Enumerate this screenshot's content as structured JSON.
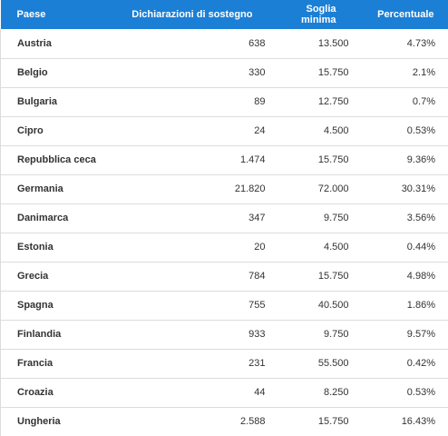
{
  "table": {
    "header": [
      "Paese",
      "Dichiarazioni di sostegno",
      "Soglia minima",
      "Percentuale"
    ],
    "rows": [
      [
        "Austria",
        "638",
        "13.500",
        "4.73%"
      ],
      [
        "Belgio",
        "330",
        "15.750",
        "2.1%"
      ],
      [
        "Bulgaria",
        "89",
        "12.750",
        "0.7%"
      ],
      [
        "Cipro",
        "24",
        "4.500",
        "0.53%"
      ],
      [
        "Repubblica ceca",
        "1.474",
        "15.750",
        "9.36%"
      ],
      [
        "Germania",
        "21.820",
        "72.000",
        "30.31%"
      ],
      [
        "Danimarca",
        "347",
        "9.750",
        "3.56%"
      ],
      [
        "Estonia",
        "20",
        "4.500",
        "0.44%"
      ],
      [
        "Grecia",
        "784",
        "15.750",
        "4.98%"
      ],
      [
        "Spagna",
        "755",
        "40.500",
        "1.86%"
      ],
      [
        "Finlandia",
        "933",
        "9.750",
        "9.57%"
      ],
      [
        "Francia",
        "231",
        "55.500",
        "0.42%"
      ],
      [
        "Croazia",
        "44",
        "8.250",
        "0.53%"
      ],
      [
        "Ungheria",
        "2.588",
        "15.750",
        "16.43%"
      ]
    ]
  }
}
